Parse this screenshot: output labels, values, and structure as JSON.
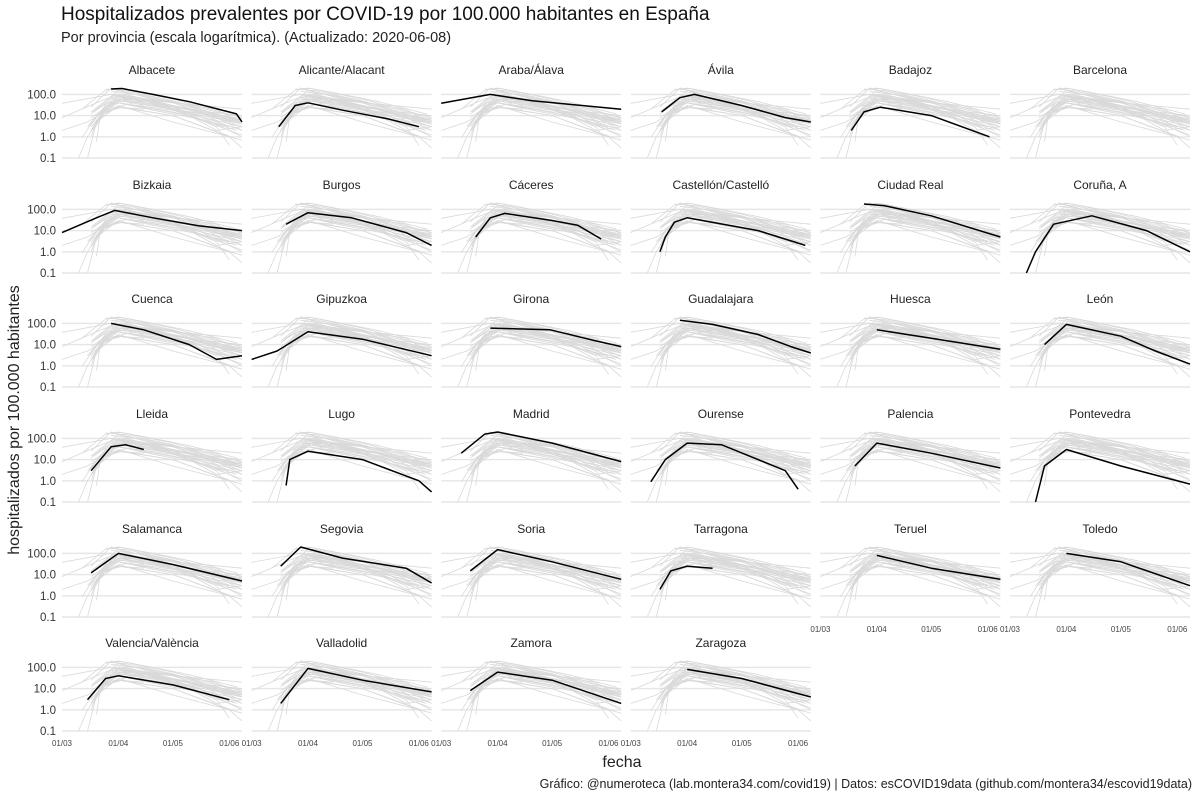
{
  "chart_data": {
    "type": "line",
    "title": "Hospitalizados prevalentes por COVID-19 por 100.000 habitantes en España",
    "subtitle": "Por provincia (escala logarítmica). (Actualizado: 2020-06-08)",
    "xlabel": "fecha",
    "ylabel": "hospitalizados por 100.000 habitantes",
    "caption": "Gráfico: @numeroteca (lab.montera34.com/covid19) | Datos: esCOVID19data (github.com/montera34/escovid19data)",
    "y_scale": "log",
    "ylim": [
      0.1,
      200
    ],
    "y_ticks": [
      "100.0",
      "10.0",
      "1.0",
      "0.1"
    ],
    "x_range": [
      "2020-03-01",
      "2020-06-08"
    ],
    "x_ticks": [
      "01/03",
      "01/04",
      "01/05",
      "01/06"
    ],
    "grid": true,
    "facets": [
      {
        "province": "Albacete",
        "points": [
          [
            "2020-03-28",
            180
          ],
          [
            "2020-04-03",
            190
          ],
          [
            "2020-04-20",
            100
          ],
          [
            "2020-05-10",
            45
          ],
          [
            "2020-06-05",
            12
          ],
          [
            "2020-06-08",
            5
          ]
        ]
      },
      {
        "province": "Alicante/Alacant",
        "points": [
          [
            "2020-03-16",
            3
          ],
          [
            "2020-03-25",
            30
          ],
          [
            "2020-04-01",
            40
          ],
          [
            "2020-04-20",
            18
          ],
          [
            "2020-05-15",
            7
          ],
          [
            "2020-06-01",
            3
          ]
        ]
      },
      {
        "province": "Araba/Álava",
        "points": [
          [
            "2020-03-01",
            38
          ],
          [
            "2020-03-28",
            100
          ],
          [
            "2020-04-20",
            50
          ],
          [
            "2020-06-08",
            20
          ]
        ]
      },
      {
        "province": "Ávila",
        "points": [
          [
            "2020-03-18",
            15
          ],
          [
            "2020-03-28",
            70
          ],
          [
            "2020-04-05",
            100
          ],
          [
            "2020-05-01",
            30
          ],
          [
            "2020-05-25",
            8
          ],
          [
            "2020-06-08",
            5
          ]
        ]
      },
      {
        "province": "Badajoz",
        "points": [
          [
            "2020-03-18",
            2
          ],
          [
            "2020-03-25",
            15
          ],
          [
            "2020-04-03",
            25
          ],
          [
            "2020-05-01",
            10
          ],
          [
            "2020-06-02",
            1
          ]
        ]
      },
      {
        "province": "Barcelona",
        "points": []
      },
      {
        "province": "Bizkaia",
        "points": [
          [
            "2020-03-01",
            8
          ],
          [
            "2020-03-20",
            40
          ],
          [
            "2020-03-30",
            90
          ],
          [
            "2020-04-20",
            40
          ],
          [
            "2020-05-15",
            17
          ],
          [
            "2020-06-08",
            10
          ]
        ]
      },
      {
        "province": "Burgos",
        "points": [
          [
            "2020-03-20",
            20
          ],
          [
            "2020-04-01",
            70
          ],
          [
            "2020-04-25",
            40
          ],
          [
            "2020-05-25",
            8
          ],
          [
            "2020-06-08",
            2
          ]
        ]
      },
      {
        "province": "Cáceres",
        "points": [
          [
            "2020-03-20",
            5
          ],
          [
            "2020-03-28",
            40
          ],
          [
            "2020-04-05",
            65
          ],
          [
            "2020-05-01",
            30
          ],
          [
            "2020-05-15",
            18
          ],
          [
            "2020-05-28",
            4
          ]
        ]
      },
      {
        "province": "Castellón/Castelló",
        "points": [
          [
            "2020-03-17",
            1
          ],
          [
            "2020-03-20",
            5
          ],
          [
            "2020-03-25",
            25
          ],
          [
            "2020-04-01",
            40
          ],
          [
            "2020-05-10",
            10
          ],
          [
            "2020-06-05",
            2
          ]
        ]
      },
      {
        "province": "Ciudad Real",
        "points": [
          [
            "2020-03-25",
            180
          ],
          [
            "2020-04-05",
            150
          ],
          [
            "2020-05-01",
            50
          ],
          [
            "2020-06-08",
            5
          ]
        ]
      },
      {
        "province": "Coruña, A",
        "points": [
          [
            "2020-03-10",
            0.1
          ],
          [
            "2020-03-15",
            1
          ],
          [
            "2020-03-25",
            20
          ],
          [
            "2020-04-15",
            50
          ],
          [
            "2020-05-15",
            10
          ],
          [
            "2020-06-08",
            1
          ]
        ]
      },
      {
        "province": "Cuenca",
        "points": [
          [
            "2020-03-28",
            100
          ],
          [
            "2020-04-15",
            50
          ],
          [
            "2020-05-10",
            10
          ],
          [
            "2020-05-25",
            2
          ],
          [
            "2020-06-08",
            3
          ]
        ]
      },
      {
        "province": "Gipuzkoa",
        "points": [
          [
            "2020-03-01",
            2
          ],
          [
            "2020-03-15",
            5
          ],
          [
            "2020-04-01",
            40
          ],
          [
            "2020-05-01",
            18
          ],
          [
            "2020-06-08",
            3
          ]
        ]
      },
      {
        "province": "Girona",
        "points": [
          [
            "2020-03-28",
            60
          ],
          [
            "2020-04-30",
            50
          ],
          [
            "2020-05-25",
            15
          ],
          [
            "2020-06-08",
            8
          ]
        ]
      },
      {
        "province": "Guadalajara",
        "points": [
          [
            "2020-03-28",
            140
          ],
          [
            "2020-04-15",
            90
          ],
          [
            "2020-05-10",
            30
          ],
          [
            "2020-05-28",
            8
          ],
          [
            "2020-06-08",
            4
          ]
        ]
      },
      {
        "province": "Huesca",
        "points": [
          [
            "2020-04-01",
            50
          ],
          [
            "2020-05-01",
            20
          ],
          [
            "2020-06-08",
            6
          ]
        ]
      },
      {
        "province": "León",
        "points": [
          [
            "2020-03-20",
            10
          ],
          [
            "2020-04-01",
            90
          ],
          [
            "2020-05-01",
            25
          ],
          [
            "2020-05-20",
            5
          ],
          [
            "2020-06-08",
            1.2
          ]
        ]
      },
      {
        "province": "Lleida",
        "points": [
          [
            "2020-03-17",
            3
          ],
          [
            "2020-03-28",
            40
          ],
          [
            "2020-04-05",
            50
          ],
          [
            "2020-04-15",
            30
          ]
        ]
      },
      {
        "province": "Lugo",
        "points": [
          [
            "2020-03-20",
            0.6
          ],
          [
            "2020-03-22",
            10
          ],
          [
            "2020-04-01",
            25
          ],
          [
            "2020-05-01",
            10
          ],
          [
            "2020-06-01",
            1
          ],
          [
            "2020-06-08",
            0.3
          ]
        ]
      },
      {
        "province": "Madrid",
        "points": [
          [
            "2020-03-12",
            20
          ],
          [
            "2020-03-25",
            160
          ],
          [
            "2020-04-01",
            200
          ],
          [
            "2020-05-01",
            60
          ],
          [
            "2020-06-08",
            8
          ]
        ]
      },
      {
        "province": "Ourense",
        "points": [
          [
            "2020-03-12",
            0.9
          ],
          [
            "2020-03-20",
            10
          ],
          [
            "2020-04-01",
            60
          ],
          [
            "2020-04-20",
            50
          ],
          [
            "2020-05-25",
            3
          ],
          [
            "2020-06-01",
            0.4
          ]
        ]
      },
      {
        "province": "Palencia",
        "points": [
          [
            "2020-03-20",
            5
          ],
          [
            "2020-04-01",
            60
          ],
          [
            "2020-05-01",
            20
          ],
          [
            "2020-06-08",
            4
          ]
        ]
      },
      {
        "province": "Pontevedra",
        "points": [
          [
            "2020-03-15",
            0.1
          ],
          [
            "2020-03-20",
            5
          ],
          [
            "2020-04-01",
            30
          ],
          [
            "2020-05-01",
            5
          ],
          [
            "2020-06-08",
            0.7
          ]
        ]
      },
      {
        "province": "Salamanca",
        "points": [
          [
            "2020-03-17",
            12
          ],
          [
            "2020-04-01",
            100
          ],
          [
            "2020-05-01",
            30
          ],
          [
            "2020-06-08",
            5
          ]
        ]
      },
      {
        "province": "Segovia",
        "points": [
          [
            "2020-03-17",
            25
          ],
          [
            "2020-03-28",
            200
          ],
          [
            "2020-04-20",
            60
          ],
          [
            "2020-05-25",
            20
          ],
          [
            "2020-06-08",
            4
          ]
        ]
      },
      {
        "province": "Soria",
        "points": [
          [
            "2020-03-17",
            15
          ],
          [
            "2020-04-01",
            150
          ],
          [
            "2020-05-01",
            40
          ],
          [
            "2020-06-08",
            6
          ]
        ]
      },
      {
        "province": "Tarragona",
        "points": [
          [
            "2020-03-17",
            2
          ],
          [
            "2020-03-23",
            15
          ],
          [
            "2020-04-01",
            25
          ],
          [
            "2020-04-15",
            20
          ]
        ]
      },
      {
        "province": "Teruel",
        "points": [
          [
            "2020-04-01",
            80
          ],
          [
            "2020-05-01",
            20
          ],
          [
            "2020-06-08",
            6
          ]
        ]
      },
      {
        "province": "Toledo",
        "points": [
          [
            "2020-04-01",
            100
          ],
          [
            "2020-05-01",
            40
          ],
          [
            "2020-06-08",
            3
          ]
        ]
      },
      {
        "province": "Valencia/València",
        "points": [
          [
            "2020-03-15",
            3
          ],
          [
            "2020-03-25",
            30
          ],
          [
            "2020-04-01",
            40
          ],
          [
            "2020-05-01",
            15
          ],
          [
            "2020-06-01",
            3
          ]
        ]
      },
      {
        "province": "Valladolid",
        "points": [
          [
            "2020-03-17",
            2
          ],
          [
            "2020-04-01",
            90
          ],
          [
            "2020-05-01",
            25
          ],
          [
            "2020-06-08",
            7
          ]
        ]
      },
      {
        "province": "Zamora",
        "points": [
          [
            "2020-03-17",
            8
          ],
          [
            "2020-04-01",
            60
          ],
          [
            "2020-05-01",
            25
          ],
          [
            "2020-06-08",
            2
          ]
        ]
      },
      {
        "province": "Zaragoza",
        "points": [
          [
            "2020-04-01",
            80
          ],
          [
            "2020-05-01",
            30
          ],
          [
            "2020-06-08",
            4
          ]
        ]
      }
    ]
  }
}
